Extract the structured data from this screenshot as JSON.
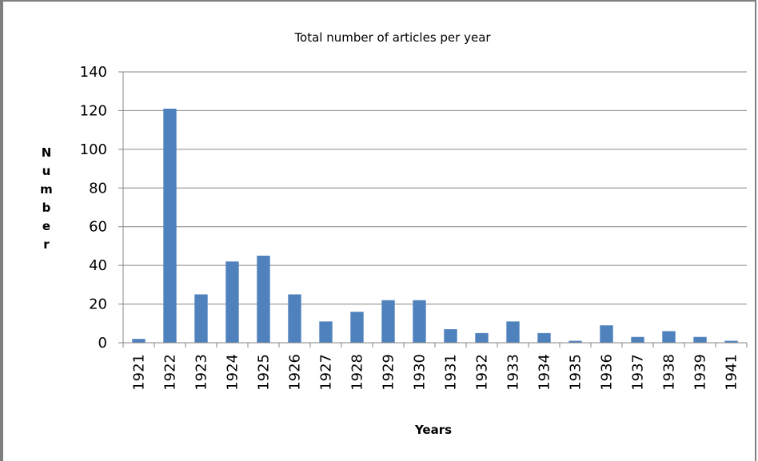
{
  "chart_data": {
    "type": "bar",
    "title": "Total number of articles per year",
    "xlabel": "Years",
    "ylabel": "Number",
    "categories": [
      "1921",
      "1922",
      "1923",
      "1924",
      "1925",
      "1926",
      "1927",
      "1928",
      "1929",
      "1930",
      "1931",
      "1932",
      "1933",
      "1934",
      "1935",
      "1936",
      "1937",
      "1938",
      "1939",
      "1941"
    ],
    "values": [
      2,
      121,
      25,
      42,
      45,
      25,
      11,
      16,
      22,
      22,
      7,
      5,
      11,
      5,
      1,
      9,
      3,
      6,
      3,
      1
    ],
    "ylim": [
      0,
      140
    ],
    "yticks": [
      0,
      20,
      40,
      60,
      80,
      100,
      120,
      140
    ],
    "grid": true,
    "legend": "none",
    "bar_color": "#4f81bd",
    "grid_color": "#868686",
    "axis_color": "#868686"
  }
}
